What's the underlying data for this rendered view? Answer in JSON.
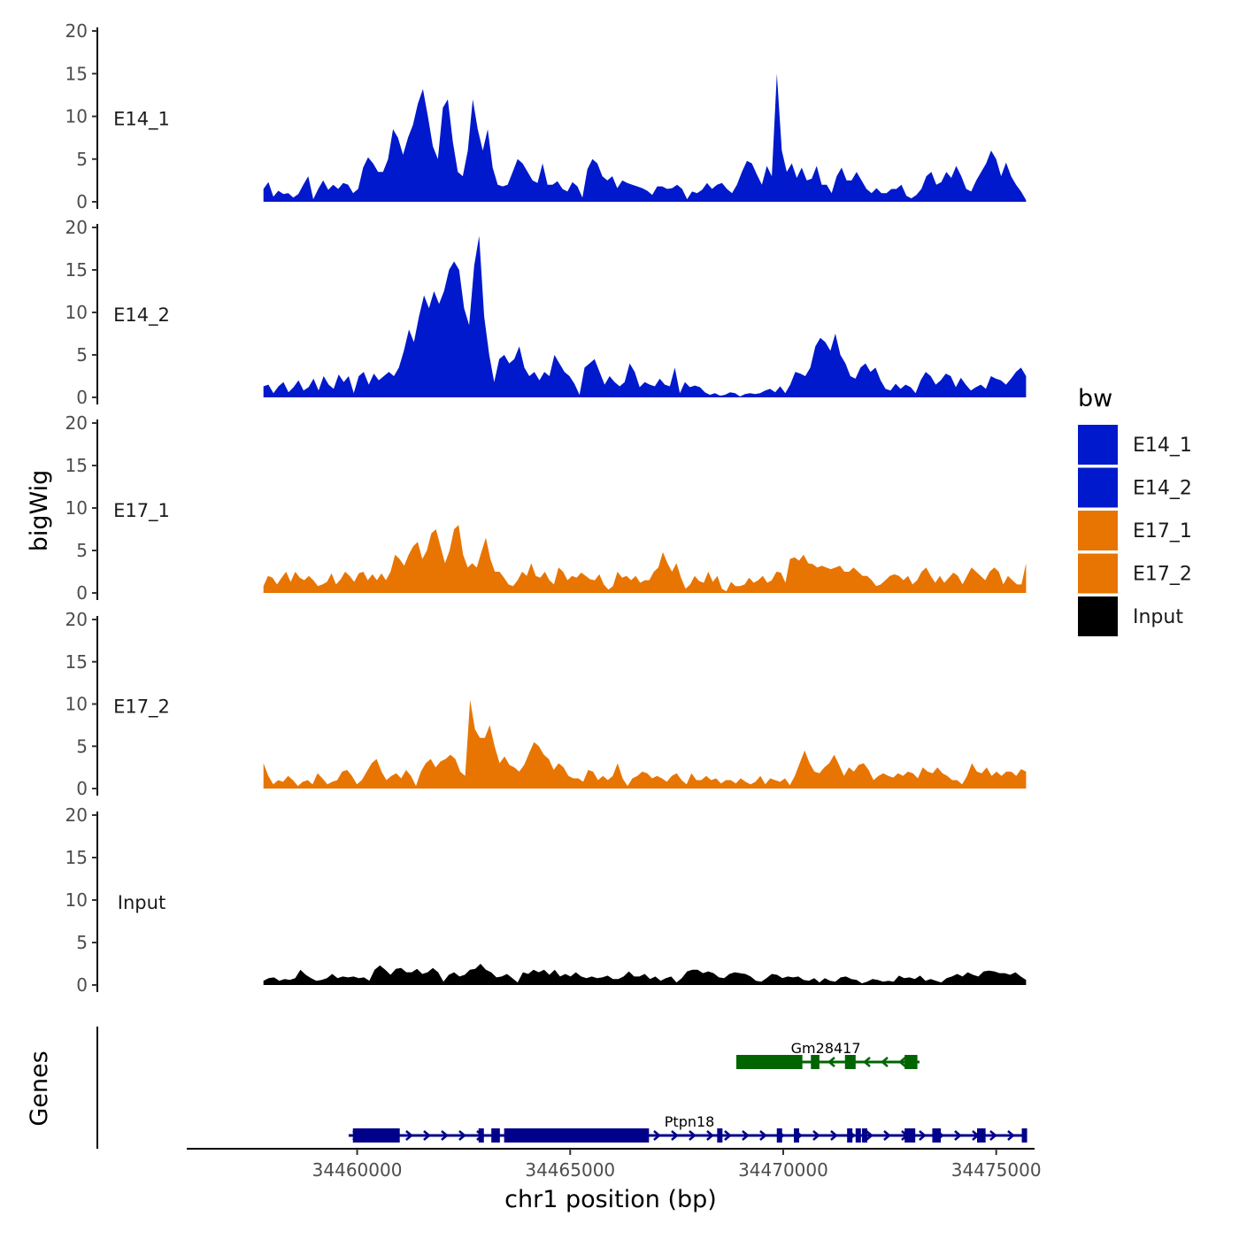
{
  "chart_data": {
    "type": "area",
    "title": "",
    "xlabel": "chr1 position (bp)",
    "ylabel": "bigWig",
    "genes_label": "Genes",
    "xlim": [
      34456000,
      34475900
    ],
    "x_range": [
      34457800,
      34475700
    ],
    "ylim": [
      0,
      20
    ],
    "x_ticks": [
      34460000,
      34465000,
      34470000,
      34475000
    ],
    "x_tick_labels": [
      "34460000",
      "34465000",
      "34470000",
      "34475000"
    ],
    "y_ticks": [
      0,
      5,
      10,
      15,
      20
    ],
    "y_tick_labels": [
      "0",
      "5",
      "10",
      "15",
      "20"
    ],
    "legend": {
      "title": "bw",
      "entries": [
        {
          "label": "E14_1",
          "color": "#0019CC"
        },
        {
          "label": "E14_2",
          "color": "#0019CC"
        },
        {
          "label": "E17_1",
          "color": "#E87502"
        },
        {
          "label": "E17_2",
          "color": "#E87502"
        },
        {
          "label": "Input",
          "color": "#000000"
        }
      ]
    },
    "series": [
      {
        "name": "E14_1",
        "color": "#0019CC",
        "values": [
          1.5,
          2.3,
          0.6,
          1.3,
          0.9,
          1,
          0.5,
          0.9,
          2,
          3,
          0.3,
          1.5,
          2.5,
          1.4,
          2,
          1.5,
          2.2,
          2,
          1,
          1.5,
          4,
          5.2,
          4.5,
          3.5,
          3.5,
          5,
          8.5,
          7.5,
          5.5,
          7.5,
          9,
          11.5,
          13.2,
          10,
          6.5,
          5,
          11,
          12,
          7,
          3.5,
          3,
          6,
          12,
          8.5,
          6,
          8.5,
          4,
          2,
          1.8,
          2,
          3.5,
          5,
          4.5,
          3.5,
          2.5,
          2.2,
          4.5,
          2,
          2,
          2.4,
          1.5,
          1.2,
          2.3,
          1.8,
          0.5,
          3.8,
          5,
          4.5,
          3,
          2.5,
          3,
          1.6,
          2.5,
          2.2,
          2,
          1.8,
          1.6,
          1.3,
          0.8,
          1.8,
          1.8,
          1.5,
          1.6,
          2,
          1.5,
          0.3,
          1.2,
          1,
          1.4,
          2.2,
          1.5,
          2,
          2.2,
          1.5,
          1,
          2,
          3.5,
          4.8,
          4.5,
          3.2,
          2,
          4.2,
          3,
          15,
          6,
          3.5,
          4.5,
          2.8,
          4,
          2.5,
          2.7,
          4.2,
          2,
          2,
          1,
          3,
          4,
          2.5,
          2.5,
          3.5,
          2.5,
          1.5,
          1,
          1.6,
          1,
          1,
          1.5,
          1.5,
          2,
          0.7,
          0.4,
          0.8,
          1.5,
          3,
          3.5,
          2,
          2.3,
          3.5,
          2.8,
          4.2,
          3,
          1.5,
          1.2,
          2.5,
          3.5,
          4.5,
          6,
          5,
          3,
          4.6,
          3,
          2,
          1.2,
          0.2
        ]
      },
      {
        "name": "E14_2",
        "color": "#0019CC",
        "values": [
          1.3,
          1.5,
          0.5,
          1.3,
          1.8,
          0.6,
          1.2,
          2,
          0.8,
          1.2,
          2.2,
          0.8,
          2.5,
          1.5,
          1,
          2.7,
          1.8,
          2.5,
          0.5,
          2.5,
          3,
          1.5,
          2.8,
          2,
          2.5,
          3,
          2.5,
          3.5,
          5.5,
          8,
          6.5,
          9.5,
          12,
          10.5,
          12.5,
          11,
          12.5,
          15,
          16,
          15,
          10.5,
          8.5,
          15.5,
          19,
          9.5,
          5,
          1.8,
          4.5,
          5,
          4,
          4.5,
          6,
          3.5,
          2.5,
          3,
          2,
          3,
          2.5,
          5,
          4,
          3,
          2.5,
          1.6,
          0.3,
          3.5,
          4,
          4.5,
          3,
          1.5,
          2.5,
          1.8,
          1.3,
          1.8,
          4,
          3,
          1.2,
          1.8,
          1.5,
          1.3,
          2.2,
          1.5,
          1.3,
          3.5,
          0.5,
          1.8,
          1.2,
          1.4,
          1.2,
          0.6,
          0.3,
          0.5,
          0.2,
          0.3,
          0.6,
          0.5,
          0.1,
          0.4,
          0.5,
          0.4,
          0.5,
          0.8,
          1,
          0.6,
          1.3,
          0.5,
          1.5,
          3,
          2.8,
          2.5,
          3.5,
          6,
          7,
          6.5,
          5.5,
          7.5,
          5,
          4,
          2.5,
          2.2,
          3.5,
          4,
          3,
          3.5,
          2,
          1,
          0.8,
          1.6,
          1,
          1.5,
          1.2,
          0.5,
          2,
          3,
          2.5,
          1.5,
          2,
          2.8,
          2.5,
          1.2,
          2.3,
          1.5,
          0.8,
          1.2,
          1.5,
          1,
          2.5,
          2.2,
          2,
          1.5,
          2.2,
          3,
          3.5,
          2.5
        ]
      },
      {
        "name": "E17_1",
        "color": "#E87502",
        "values": [
          0.8,
          2,
          1.8,
          1,
          1.8,
          2.5,
          1.3,
          2.5,
          1.8,
          1.5,
          2,
          1.5,
          0.8,
          1,
          1.3,
          2.3,
          1,
          1.6,
          2.5,
          2,
          1.3,
          2.3,
          2.5,
          1.5,
          2.2,
          1.5,
          2.3,
          1.5,
          2.5,
          4.5,
          4,
          3.2,
          4.5,
          5.5,
          6,
          4,
          5,
          7,
          7.5,
          5.5,
          3.5,
          5,
          7.5,
          8,
          4.5,
          3,
          3.5,
          3,
          4.8,
          6.5,
          4,
          2.5,
          2.5,
          1.8,
          1,
          0.8,
          1.5,
          2.5,
          2,
          3.5,
          2,
          1.8,
          2.5,
          1.5,
          1,
          3,
          2.5,
          1.5,
          2,
          1.8,
          2.4,
          2,
          1.6,
          1.5,
          2.2,
          1,
          0.4,
          0.8,
          2.5,
          1.8,
          2,
          1.5,
          2,
          1.2,
          1.5,
          1.5,
          2.5,
          3,
          4.8,
          3.5,
          2.5,
          3.5,
          1.8,
          0.5,
          1,
          2,
          1.4,
          1.2,
          2.5,
          1.3,
          2,
          0.5,
          0.2,
          1.3,
          0.8,
          0.8,
          1,
          1.8,
          1.2,
          1.5,
          2,
          1.2,
          1.5,
          2.5,
          2.4,
          1.2,
          4,
          4.2,
          3.8,
          4.5,
          3.5,
          3.4,
          3,
          3.2,
          3,
          2.8,
          3,
          3.2,
          2.5,
          2.5,
          3,
          2.5,
          2,
          2,
          1.5,
          0.8,
          1,
          1.5,
          2,
          2.2,
          2,
          1.5,
          2,
          1,
          1.5,
          2.5,
          3,
          2,
          1.2,
          2,
          1.2,
          1.8,
          2.4,
          2,
          1,
          2,
          3,
          2.5,
          2,
          1.5,
          2.5,
          3,
          2.5,
          1,
          2,
          1.5,
          1,
          1,
          3.5
        ]
      },
      {
        "name": "E17_2",
        "color": "#E87502",
        "values": [
          3,
          1.5,
          0.5,
          1,
          0.8,
          1.5,
          1,
          0.3,
          0.8,
          1,
          0.5,
          1.8,
          1.2,
          0.5,
          0.8,
          1,
          2,
          2.2,
          1.5,
          0.5,
          1,
          2,
          3,
          3.5,
          2,
          1,
          1.5,
          1.8,
          1.2,
          2.2,
          1.5,
          0.3,
          2,
          3,
          3.5,
          2.5,
          3.2,
          3.5,
          4,
          3.5,
          2,
          1.5,
          10.5,
          7,
          6,
          6,
          7.5,
          5,
          3,
          3.8,
          2.8,
          2.5,
          2,
          2.8,
          4.2,
          5.5,
          5,
          4,
          3.5,
          2.2,
          3,
          2.5,
          1.5,
          1.2,
          1.2,
          0.8,
          2.2,
          2,
          1,
          1.5,
          1,
          1.5,
          3,
          1.2,
          0.3,
          1.2,
          1.5,
          2,
          1.8,
          1.2,
          1.5,
          1.2,
          0.8,
          1.5,
          1.8,
          1,
          0.5,
          1.8,
          1,
          1,
          1.5,
          1,
          1.2,
          0.6,
          1,
          1,
          0.6,
          1.2,
          0.8,
          0.5,
          0.8,
          1.5,
          0.5,
          1.2,
          1,
          0.8,
          1.2,
          0.4,
          1.5,
          3,
          4.5,
          3,
          2,
          1.8,
          2.5,
          3,
          4,
          2.8,
          1.5,
          2.5,
          2,
          2.8,
          3,
          2.2,
          1,
          1.5,
          1.8,
          1.5,
          1.3,
          1.8,
          1.5,
          2,
          1.8,
          1.2,
          2.5,
          2,
          1.8,
          2.5,
          1.8,
          1.5,
          1,
          1,
          0.5,
          1.5,
          3,
          2,
          1.8,
          2.5,
          1.5,
          2,
          1.5,
          2,
          2,
          1.5,
          2.3,
          2
        ]
      },
      {
        "name": "Input",
        "color": "#000000",
        "values": [
          0.5,
          0.8,
          0.9,
          0.5,
          0.7,
          0.6,
          0.8,
          1.8,
          1.2,
          0.8,
          0.5,
          0.6,
          0.8,
          1.3,
          0.8,
          1,
          0.9,
          1,
          0.8,
          0.9,
          0.5,
          1.8,
          2.3,
          1.8,
          1.2,
          1.9,
          2,
          1.5,
          1.5,
          1.9,
          1.3,
          1.5,
          2,
          1.5,
          0.4,
          1.2,
          1.5,
          1,
          1.2,
          1.8,
          1.9,
          2.5,
          1.8,
          1.5,
          0.9,
          1,
          1.3,
          0.8,
          0.3,
          1.5,
          1.3,
          1.8,
          1.5,
          1.8,
          1.2,
          1.8,
          1,
          1.3,
          1,
          1.5,
          1,
          0.8,
          1,
          0.8,
          0.9,
          1.1,
          0.7,
          0.7,
          1,
          1.6,
          1,
          1,
          1.3,
          0.7,
          1,
          0.5,
          0.8,
          1,
          0.3,
          0.8,
          1.6,
          1.8,
          1.8,
          1.4,
          1.6,
          1.4,
          0.9,
          0.8,
          1.3,
          1.5,
          1.4,
          1.3,
          1,
          0.5,
          0.4,
          0.8,
          1.3,
          1.2,
          0.8,
          1,
          0.9,
          1,
          0.6,
          0.5,
          0.8,
          0.3,
          0.8,
          0.5,
          0.4,
          0.9,
          1,
          0.7,
          0.6,
          0.2,
          0.4,
          0.7,
          0.6,
          0.4,
          0.5,
          0.4,
          1.1,
          0.8,
          0.9,
          0.7,
          1.1,
          0.5,
          0.7,
          0.5,
          0.3,
          0.8,
          1,
          1.3,
          1,
          1.5,
          1.2,
          1,
          1.6,
          1.7,
          1.6,
          1.4,
          1.4,
          1.2,
          1.5,
          1,
          0.6
        ]
      }
    ],
    "genes": [
      {
        "name": "Ptpn18",
        "strand": "+",
        "color": "#00008B",
        "start": 34459800,
        "end": 34475700,
        "label_x": 34467800,
        "exons": [
          [
            34459900,
            34461000,
            "thick"
          ],
          [
            34462850,
            34462950,
            "small"
          ],
          [
            34463150,
            34463350,
            "small"
          ],
          [
            34463450,
            34466850,
            "thick"
          ],
          [
            34468450,
            34468550,
            "small"
          ],
          [
            34469850,
            34469950,
            "small"
          ],
          [
            34470250,
            34470350,
            "small"
          ],
          [
            34471500,
            34471600,
            "small"
          ],
          [
            34471700,
            34471800,
            "small"
          ],
          [
            34471850,
            34471950,
            "small"
          ],
          [
            34472850,
            34473100,
            "small"
          ],
          [
            34473500,
            34473700,
            "small"
          ],
          [
            34474550,
            34474750,
            "small"
          ],
          [
            34475600,
            34475700,
            "small"
          ]
        ]
      },
      {
        "name": "Gm28417",
        "strand": "-",
        "color": "#006400",
        "start": 34468900,
        "end": 34473200,
        "label_x": 34471000,
        "exons": [
          [
            34468900,
            34470450,
            "thick"
          ],
          [
            34470650,
            34470850,
            "small"
          ],
          [
            34471450,
            34471700,
            "small"
          ],
          [
            34472850,
            34473150,
            "small"
          ]
        ]
      }
    ]
  }
}
